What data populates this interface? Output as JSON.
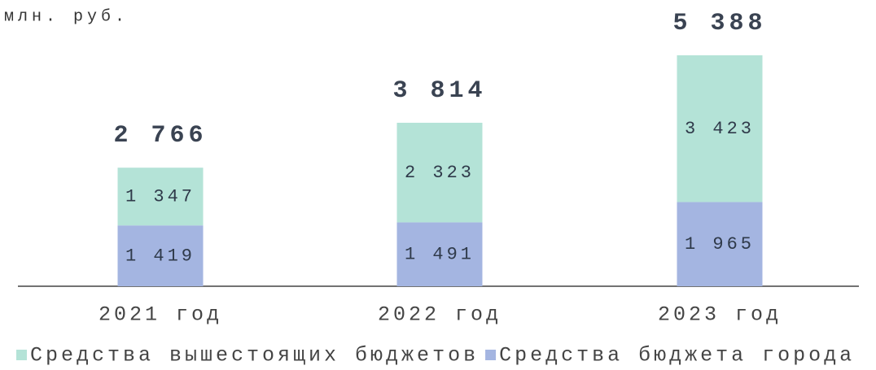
{
  "chart_data": {
    "type": "stacked-bar",
    "unit_label": "млн. руб.",
    "categories": [
      "2021 год",
      "2022 год",
      "2023 год"
    ],
    "series": [
      {
        "name": "Средства вышестоящих бюджетов",
        "color": "#b4e3d7",
        "values": [
          1347,
          2323,
          3423
        ],
        "value_labels": [
          "1 347",
          "2 323",
          "3 423"
        ]
      },
      {
        "name": "Средства бюджета города",
        "color": "#a4b5e1",
        "values": [
          1419,
          1491,
          1965
        ],
        "value_labels": [
          "1 419",
          "1 491",
          "1 965"
        ]
      }
    ],
    "totals": [
      2766,
      3814,
      5388
    ],
    "total_labels": [
      "2 766",
      "3 814",
      "5 388"
    ]
  }
}
